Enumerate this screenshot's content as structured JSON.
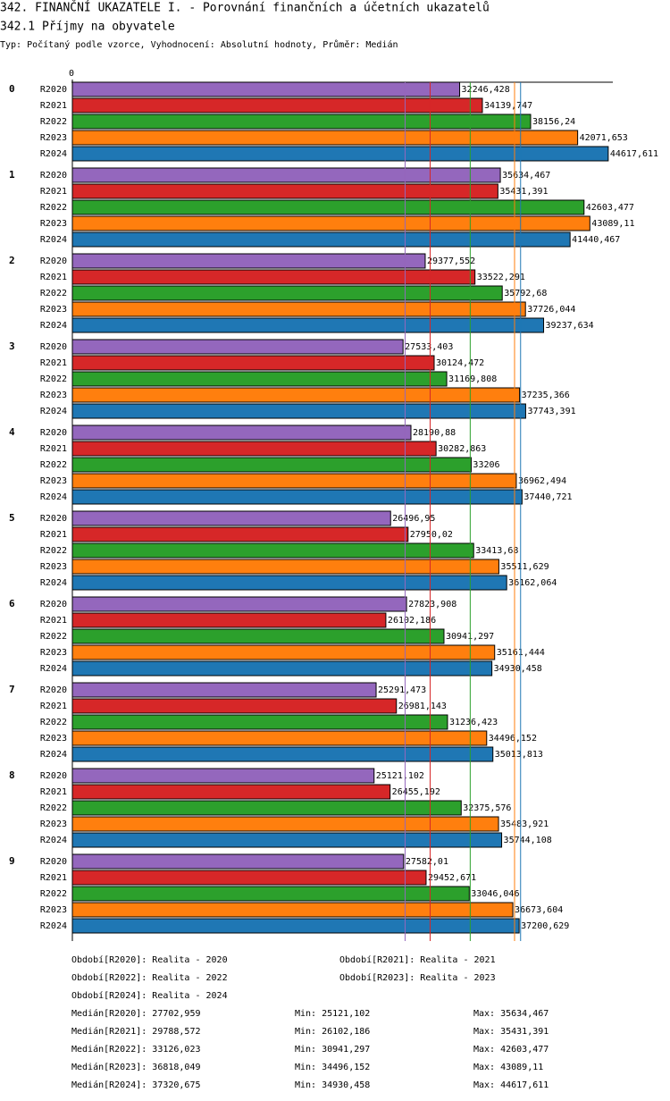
{
  "chart_data": {
    "type": "hbar",
    "title": "342. FINANČNÍ UKAZATELE I. - Porovnání finančních a účetních ukazatelů",
    "subtitle": "342.1 Příjmy na obyvatele",
    "info": "Typ: Počítaný podle vzorce, Vyhodnocení: Absolutní hodnoty, Průměr: Medián",
    "categories": [
      "0",
      "1",
      "2",
      "3",
      "4",
      "5",
      "6",
      "7",
      "8",
      "9"
    ],
    "xlim": [
      0,
      45000
    ],
    "xticks": [
      0
    ],
    "series": [
      {
        "name": "R2020",
        "color": "#9467bd",
        "values": [
          32246.428,
          35634.467,
          29377.552,
          27533.403,
          28190.88,
          26496.95,
          27823.908,
          25291.473,
          25121.102,
          27582.01
        ],
        "value_labels": [
          "32246,428",
          "35634,467",
          "29377,552",
          "27533,403",
          "28190,88",
          "26496,95",
          "27823,908",
          "25291,473",
          "25121,102",
          "27582,01"
        ],
        "period_label": "Období[R2020]: Realita - 2020",
        "median": 27702.959,
        "median_label": "Medián[R2020]: 27702,959",
        "min_label": "Min: 25121,102",
        "max_label": "Max: 35634,467"
      },
      {
        "name": "R2021",
        "color": "#d62728",
        "values": [
          34139.747,
          35431.391,
          33522.291,
          30124.472,
          30282.863,
          27950.02,
          26102.186,
          26981.143,
          26455.192,
          29452.671
        ],
        "value_labels": [
          "34139,747",
          "35431,391",
          "33522,291",
          "30124,472",
          "30282,863",
          "27950,02",
          "26102,186",
          "26981,143",
          "26455,192",
          "29452,671"
        ],
        "period_label": "Období[R2021]: Realita - 2021",
        "median": 29788.572,
        "median_label": "Medián[R2021]: 29788,572",
        "min_label": "Min: 26102,186",
        "max_label": "Max: 35431,391"
      },
      {
        "name": "R2022",
        "color": "#2ca02c",
        "values": [
          38156.24,
          42603.477,
          35792.68,
          31169.808,
          33206,
          33413.68,
          30941.297,
          31236.423,
          32375.576,
          33046.046
        ],
        "value_labels": [
          "38156,24",
          "42603,477",
          "35792,68",
          "31169,808",
          "33206",
          "33413,68",
          "30941,297",
          "31236,423",
          "32375,576",
          "33046,046"
        ],
        "period_label": "Období[R2022]: Realita - 2022",
        "median": 33126.023,
        "median_label": "Medián[R2022]: 33126,023",
        "min_label": "Min: 30941,297",
        "max_label": "Max: 42603,477"
      },
      {
        "name": "R2023",
        "color": "#ff7f0e",
        "values": [
          42071.653,
          43089.11,
          37726.044,
          37235.366,
          36962.494,
          35511.629,
          35161.444,
          34496.152,
          35483.921,
          36673.604
        ],
        "value_labels": [
          "42071,653",
          "43089,11",
          "37726,044",
          "37235,366",
          "36962,494",
          "35511,629",
          "35161,444",
          "34496,152",
          "35483,921",
          "36673,604"
        ],
        "period_label": "Období[R2023]: Realita - 2023",
        "median": 36818.049,
        "median_label": "Medián[R2023]: 36818,049",
        "min_label": "Min: 34496,152",
        "max_label": "Max: 43089,11"
      },
      {
        "name": "R2024",
        "color": "#1f77b4",
        "values": [
          44617.611,
          41440.467,
          39237.634,
          37743.391,
          37440.721,
          36162.064,
          34930.458,
          35013.813,
          35744.108,
          37200.629
        ],
        "value_labels": [
          "44617,611",
          "41440,467",
          "39237,634",
          "37743,391",
          "37440,721",
          "36162,064",
          "34930,458",
          "35013,813",
          "35744,108",
          "37200,629"
        ],
        "period_label": "Období[R2024]: Realita - 2024",
        "median": 37320.675,
        "median_label": "Medián[R2024]: 37320,675",
        "min_label": "Min: 34930,458",
        "max_label": "Max: 44617,611"
      }
    ]
  }
}
